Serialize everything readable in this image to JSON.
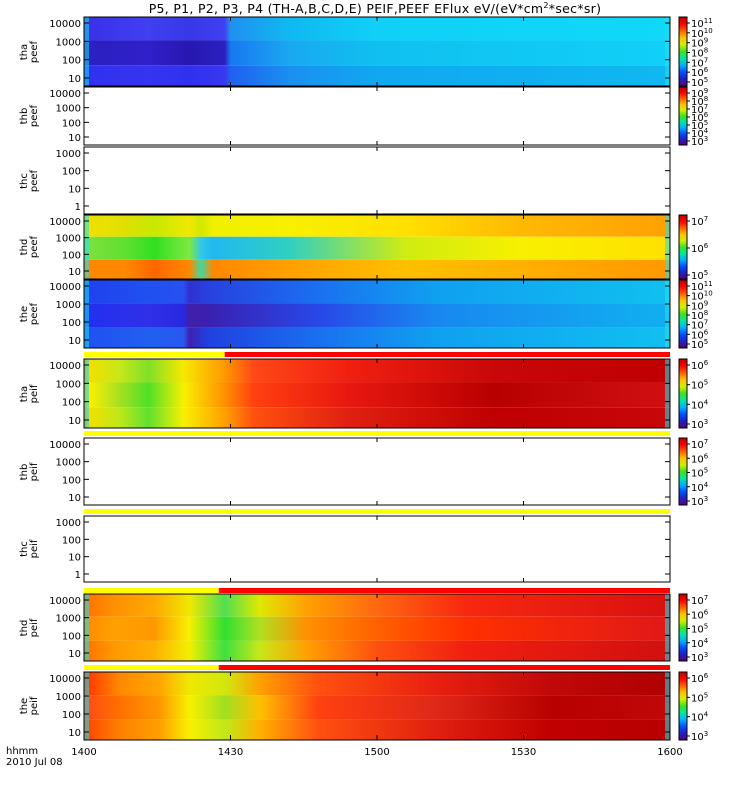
{
  "title_parts": {
    "main": "P5, P1, P2, P3, P4 (TH-A,B,C,D,E) PEIF,PEEF EFlux eV/(eV*cm",
    "sup": "2",
    "end": "*sec*sr)"
  },
  "footer": {
    "time_unit": "hhmm",
    "date": "2010 Jul 08"
  },
  "colors": {
    "frame": "#000000",
    "flag_yellow": "#ffff00",
    "flag_red": "#ff0000"
  },
  "chart_data": {
    "type": "heatmap",
    "x_axis": {
      "ticks": [
        "1400",
        "1430",
        "1500",
        "1530",
        "1600"
      ]
    },
    "panels": [
      {
        "id": "tha_peef",
        "ylabel": [
          "tha",
          "peef"
        ],
        "yticks": [
          "10",
          "100",
          "1000",
          "10000"
        ],
        "has_data": true,
        "colorbar": {
          "labels": [
            "10^5",
            "10^6",
            "10^7",
            "10^8",
            "10^9",
            "10^10",
            "10^11"
          ]
        },
        "cols": [
          {
            "t": 0.0,
            "lo": "#3030f0",
            "mid": "#2a20c0",
            "hi": "#3a30e8"
          },
          {
            "t": 0.11,
            "lo": "#3535f0",
            "mid": "#3020c8",
            "hi": "#4040f0"
          },
          {
            "t": 0.18,
            "lo": "#3030f0",
            "mid": "#2818b0",
            "hi": "#3838e8"
          },
          {
            "t": 0.24,
            "lo": "#3838f0",
            "mid": "#2a20c0",
            "hi": "#4040f0"
          },
          {
            "t": 0.25,
            "lo": "#2060f0",
            "mid": "#1878f0",
            "hi": "#2090f0"
          },
          {
            "t": 0.35,
            "lo": "#1a90f0",
            "mid": "#1aa8f0",
            "hi": "#10b8f0"
          },
          {
            "t": 0.5,
            "lo": "#10a8f0",
            "mid": "#10c0f0",
            "hi": "#10d0f8"
          },
          {
            "t": 1.0,
            "lo": "#10b8f0",
            "mid": "#10d0f8",
            "hi": "#10d8f8"
          }
        ]
      },
      {
        "id": "thb_peef",
        "ylabel": [
          "thb",
          "peef"
        ],
        "yticks": [
          "10",
          "100",
          "1000",
          "10000"
        ],
        "has_data": false,
        "colorbar": {
          "labels": [
            "10^3",
            "10^4",
            "10^5",
            "10^6",
            "10^7",
            "10^8",
            "10^9"
          ]
        }
      },
      {
        "id": "thc_peef",
        "ylabel": [
          "thc",
          "peef"
        ],
        "yticks": [
          "1",
          "10",
          "100",
          "1000"
        ],
        "has_data": false,
        "colorbar": null
      },
      {
        "id": "thd_peef",
        "ylabel": [
          "thd",
          "peef"
        ],
        "yticks": [
          "10",
          "100",
          "1000",
          "10000"
        ],
        "has_data": true,
        "colorbar": {
          "labels": [
            "10^5",
            "10^6",
            "10^7"
          ]
        },
        "cols": [
          {
            "t": 0.0,
            "lo": "#ff8800",
            "mid": "#80e040",
            "hi": "#f0e000"
          },
          {
            "t": 0.07,
            "lo": "#ff8800",
            "mid": "#60e030",
            "hi": "#e0e000"
          },
          {
            "t": 0.12,
            "lo": "#ff6600",
            "mid": "#30e020",
            "hi": "#c8e800"
          },
          {
            "t": 0.18,
            "lo": "#ff8800",
            "mid": "#80e840",
            "hi": "#f0e800"
          },
          {
            "t": 0.2,
            "lo": "#40d8a0",
            "mid": "#30c8e8",
            "hi": "#d0e800"
          },
          {
            "t": 0.22,
            "lo": "#ff8800",
            "mid": "#20b8f0",
            "hi": "#f0f000"
          },
          {
            "t": 0.35,
            "lo": "#ffa000",
            "mid": "#30d0c0",
            "hi": "#f8f000"
          },
          {
            "t": 0.55,
            "lo": "#ffc000",
            "mid": "#d0ec10",
            "hi": "#ffe000"
          },
          {
            "t": 0.75,
            "lo": "#ffb000",
            "mid": "#f8f000",
            "hi": "#ffb800"
          },
          {
            "t": 1.0,
            "lo": "#ff9800",
            "mid": "#ffe000",
            "hi": "#ffa000"
          }
        ]
      },
      {
        "id": "the_peef",
        "ylabel": [
          "the",
          "peef"
        ],
        "yticks": [
          "10",
          "100",
          "1000",
          "10000"
        ],
        "has_data": true,
        "colorbar": {
          "labels": [
            "10^5",
            "10^6",
            "10^7",
            "10^8",
            "10^9",
            "10^10",
            "10^11"
          ]
        },
        "cols": [
          {
            "t": 0.0,
            "lo": "#2050f0",
            "mid": "#2030f0",
            "hi": "#2040f0"
          },
          {
            "t": 0.11,
            "lo": "#2060f0",
            "mid": "#3030e8",
            "hi": "#2050f0"
          },
          {
            "t": 0.17,
            "lo": "#2858f0",
            "mid": "#2828e0",
            "hi": "#2850f0"
          },
          {
            "t": 0.18,
            "lo": "#4020b0",
            "mid": "#4020a8",
            "hi": "#3030d0"
          },
          {
            "t": 0.21,
            "lo": "#2040e0",
            "mid": "#3a20b0",
            "hi": "#2840e0"
          },
          {
            "t": 0.4,
            "lo": "#1a70f0",
            "mid": "#2848e8",
            "hi": "#1a70f0"
          },
          {
            "t": 0.6,
            "lo": "#10a0f0",
            "mid": "#1888f0",
            "hi": "#10a0f0"
          },
          {
            "t": 1.0,
            "lo": "#10c0f0",
            "mid": "#10b0f0",
            "hi": "#10c0f0"
          }
        ]
      },
      {
        "id": "tha_peif",
        "ylabel": [
          "tha",
          "peif"
        ],
        "yticks": [
          "10",
          "100",
          "1000",
          "10000"
        ],
        "has_data": true,
        "colorbar": {
          "labels": [
            "10^3",
            "10^4",
            "10^5",
            "10^6"
          ]
        },
        "cols": [
          {
            "t": 0.0,
            "lo": "#ff9800",
            "mid": "#ffb000",
            "hi": "#ffa000"
          },
          {
            "t": 0.01,
            "lo": "#f0e000",
            "mid": "#f8f000",
            "hi": "#f0e000"
          },
          {
            "t": 0.06,
            "lo": "#c0e818",
            "mid": "#a8e020",
            "hi": "#c8e818"
          },
          {
            "t": 0.11,
            "lo": "#60e030",
            "mid": "#50e028",
            "hi": "#80e028"
          },
          {
            "t": 0.17,
            "lo": "#f8f000",
            "mid": "#f8f000",
            "hi": "#f8e800"
          },
          {
            "t": 0.24,
            "lo": "#ffa000",
            "mid": "#ff9000",
            "hi": "#ff9800"
          },
          {
            "t": 0.29,
            "lo": "#ff5010",
            "mid": "#ff4010",
            "hi": "#ff4818"
          },
          {
            "t": 0.45,
            "lo": "#e02010",
            "mid": "#e81810",
            "hi": "#f02010"
          },
          {
            "t": 0.7,
            "lo": "#c00000",
            "mid": "#b80000",
            "hi": "#c80808"
          },
          {
            "t": 1.0,
            "lo": "#c80808",
            "mid": "#d01010",
            "hi": "#c00000"
          }
        ]
      },
      {
        "id": "thb_peif",
        "ylabel": [
          "thb",
          "peif"
        ],
        "yticks": [
          "10",
          "100",
          "1000",
          "10000"
        ],
        "has_data": false,
        "colorbar": {
          "labels": [
            "10^3",
            "10^4",
            "10^5",
            "10^6",
            "10^7"
          ]
        }
      },
      {
        "id": "thc_peif",
        "ylabel": [
          "thc",
          "peif"
        ],
        "yticks": [
          "1",
          "10",
          "100",
          "1000"
        ],
        "has_data": false,
        "colorbar": null
      },
      {
        "id": "thd_peif",
        "ylabel": [
          "thd",
          "peif"
        ],
        "yticks": [
          "10",
          "100",
          "1000",
          "10000"
        ],
        "has_data": true,
        "colorbar": {
          "labels": [
            "10^3",
            "10^4",
            "10^5",
            "10^6",
            "10^7"
          ]
        },
        "cols": [
          {
            "t": 0.0,
            "lo": "#ff7000",
            "mid": "#ff8800",
            "hi": "#ff7000"
          },
          {
            "t": 0.05,
            "lo": "#ff9800",
            "mid": "#ffa000",
            "hi": "#ff9000"
          },
          {
            "t": 0.12,
            "lo": "#ffb000",
            "mid": "#ff9800",
            "hi": "#ffa800"
          },
          {
            "t": 0.18,
            "lo": "#f0f000",
            "mid": "#f8f000",
            "hi": "#f0e800"
          },
          {
            "t": 0.24,
            "lo": "#40e040",
            "mid": "#30e030",
            "hi": "#50e050"
          },
          {
            "t": 0.3,
            "lo": "#c8e818",
            "mid": "#b0e020",
            "hi": "#e0e800"
          },
          {
            "t": 0.38,
            "lo": "#ffa000",
            "mid": "#ff9000",
            "hi": "#ffa000"
          },
          {
            "t": 0.5,
            "lo": "#ff5010",
            "mid": "#ff6000",
            "hi": "#ff6810"
          },
          {
            "t": 0.65,
            "lo": "#f02010",
            "mid": "#ff3000",
            "hi": "#f82810"
          },
          {
            "t": 1.0,
            "lo": "#d01010",
            "mid": "#e01818",
            "hi": "#d81010"
          }
        ]
      },
      {
        "id": "the_peif",
        "ylabel": [
          "the",
          "peif"
        ],
        "yticks": [
          "10",
          "100",
          "1000",
          "10000"
        ],
        "has_data": true,
        "colorbar": {
          "labels": [
            "10^3",
            "10^4",
            "10^5",
            "10^6"
          ]
        },
        "cols": [
          {
            "t": 0.0,
            "lo": "#ff4000",
            "mid": "#ff4818",
            "hi": "#ff3000"
          },
          {
            "t": 0.06,
            "lo": "#ff8000",
            "mid": "#ff7000",
            "hi": "#ff8800"
          },
          {
            "t": 0.13,
            "lo": "#ffa000",
            "mid": "#ff9800",
            "hi": "#ffa800"
          },
          {
            "t": 0.18,
            "lo": "#f8f000",
            "mid": "#f8f000",
            "hi": "#f0e800"
          },
          {
            "t": 0.24,
            "lo": "#c0e818",
            "mid": "#a0e020",
            "hi": "#d0e810"
          },
          {
            "t": 0.3,
            "lo": "#ffb000",
            "mid": "#ffc000",
            "hi": "#ffa000"
          },
          {
            "t": 0.4,
            "lo": "#ff5010",
            "mid": "#ff4010",
            "hi": "#ff5010"
          },
          {
            "t": 0.6,
            "lo": "#e02010",
            "mid": "#e02818",
            "hi": "#e82010"
          },
          {
            "t": 0.8,
            "lo": "#c00000",
            "mid": "#b80000",
            "hi": "#c00808"
          },
          {
            "t": 1.0,
            "lo": "#b80000",
            "mid": "#c00808",
            "hi": "#b00000"
          }
        ]
      }
    ],
    "flag_bars": [
      {
        "after_panel": "the_peef",
        "segments": [
          {
            "from": 0.0,
            "to": 0.24,
            "color": "yellow"
          },
          {
            "from": 0.24,
            "to": 1.0,
            "color": "red"
          }
        ]
      },
      {
        "after_panel": "tha_peif",
        "segments": [
          {
            "from": 0.0,
            "to": 1.0,
            "color": "yellow"
          }
        ]
      },
      {
        "after_panel": "thb_peif",
        "segments": [
          {
            "from": 0.0,
            "to": 1.0,
            "color": "yellow"
          }
        ]
      },
      {
        "after_panel": "thc_peif",
        "segments": [
          {
            "from": 0.0,
            "to": 0.23,
            "color": "yellow"
          },
          {
            "from": 0.23,
            "to": 1.0,
            "color": "red"
          }
        ]
      },
      {
        "after_panel": "thd_peif",
        "segments": [
          {
            "from": 0.0,
            "to": 0.23,
            "color": "yellow"
          },
          {
            "from": 0.23,
            "to": 1.0,
            "color": "red"
          }
        ]
      }
    ]
  }
}
